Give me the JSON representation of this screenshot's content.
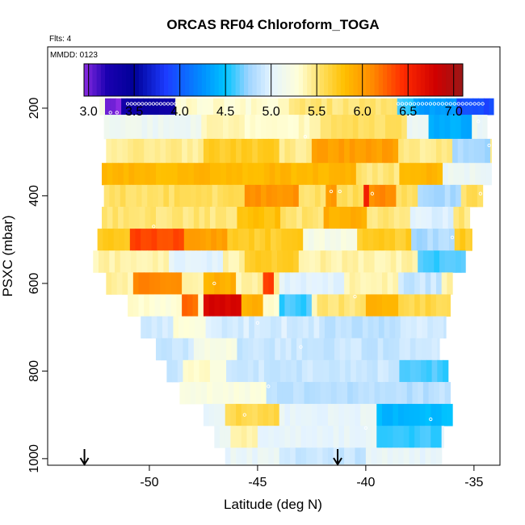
{
  "chart_data": {
    "type": "heatmap",
    "title": "ORCAS RF04 Chloroform_TOGA",
    "xlabel": "Latitude (deg N)",
    "ylabel": "PSXC (mbar)",
    "flights_label": "Flts: 4",
    "date_label": "MMDD: 0123",
    "xlim": [
      -54.7,
      -33.8
    ],
    "ylim": [
      1015,
      60
    ],
    "x_ticks": [
      -50,
      -45,
      -40,
      -35
    ],
    "y_ticks": [
      200,
      400,
      600,
      800,
      1000
    ],
    "colorbar": {
      "range": [
        2.95,
        7.1
      ],
      "ticks": [
        "3.0",
        "3.5",
        "4.0",
        "4.5",
        "5.0",
        "5.5",
        "6.0",
        "6.5",
        "7.0"
      ],
      "stops": [
        {
          "v": 2.95,
          "c": "#8a2be2"
        },
        {
          "v": 3.2,
          "c": "#1a00b0"
        },
        {
          "v": 3.5,
          "c": "#000098"
        },
        {
          "v": 3.85,
          "c": "#1c3cff"
        },
        {
          "v": 4.25,
          "c": "#0090ff"
        },
        {
          "v": 4.5,
          "c": "#00c3ff"
        },
        {
          "v": 4.75,
          "c": "#9ed4ff"
        },
        {
          "v": 5.0,
          "c": "#e4f3ff"
        },
        {
          "v": 5.3,
          "c": "#ffffd8"
        },
        {
          "v": 5.55,
          "c": "#ffdf60"
        },
        {
          "v": 5.8,
          "c": "#ffc000"
        },
        {
          "v": 6.1,
          "c": "#ff8c00"
        },
        {
          "v": 6.45,
          "c": "#ff2a00"
        },
        {
          "v": 6.8,
          "c": "#d00000"
        },
        {
          "v": 7.1,
          "c": "#9a1818"
        }
      ]
    },
    "arrows_lat": [
      -53.0,
      -41.3
    ],
    "rows": [
      {
        "p": 190,
        "lat0": -52.3,
        "lat1": -34.1,
        "base": 5.15,
        "features": [
          {
            "lat0": -52.0,
            "lat1": -51.2,
            "v": 3.0
          },
          {
            "lat0": -51.2,
            "lat1": -48.7,
            "v": 3.35
          },
          {
            "lat0": -48.7,
            "lat1": -43.5,
            "v": 5.3
          },
          {
            "lat0": -43.5,
            "lat1": -38.5,
            "v": 5.5
          },
          {
            "lat0": -38.5,
            "lat1": -37.7,
            "v": 4.6
          },
          {
            "lat0": -37.7,
            "lat1": -35.8,
            "v": 4.3
          },
          {
            "lat0": -35.8,
            "lat1": -34.1,
            "v": 3.9
          }
        ]
      },
      {
        "p": 240,
        "lat0": -52.1,
        "lat1": -34.4,
        "base": 5.1,
        "features": [
          {
            "lat0": -47.5,
            "lat1": -42.0,
            "v": 5.35
          },
          {
            "lat0": -42.0,
            "lat1": -38.0,
            "v": 5.55
          },
          {
            "lat0": -37.0,
            "lat1": -35.0,
            "v": 4.4
          }
        ]
      },
      {
        "p": 300,
        "lat0": -52.0,
        "lat1": -34.2,
        "base": 5.45,
        "features": [
          {
            "lat0": -47.5,
            "lat1": -44.0,
            "v": 5.7
          },
          {
            "lat0": -42.5,
            "lat1": -38.5,
            "v": 6.0
          },
          {
            "lat0": -36.0,
            "lat1": -34.2,
            "v": 4.8
          }
        ]
      },
      {
        "p": 350,
        "lat0": -52.2,
        "lat1": -34.2,
        "base": 5.85,
        "features": [
          {
            "lat0": -40.5,
            "lat1": -38.5,
            "v": 5.5
          },
          {
            "lat0": -36.5,
            "lat1": -34.2,
            "v": 5.1
          }
        ]
      },
      {
        "p": 400,
        "lat0": -52.1,
        "lat1": -34.6,
        "base": 5.55,
        "features": [
          {
            "lat0": -45.5,
            "lat1": -43.0,
            "v": 6.05
          },
          {
            "lat0": -41.8,
            "lat1": -41.3,
            "v": 6.0
          },
          {
            "lat0": -40.2,
            "lat1": -39.8,
            "v": 6.6
          },
          {
            "lat0": -39.8,
            "lat1": -38.5,
            "v": 6.1
          },
          {
            "lat0": -37.5,
            "lat1": -35.5,
            "v": 4.8
          }
        ]
      },
      {
        "p": 450,
        "lat0": -52.2,
        "lat1": -35.2,
        "base": 5.5,
        "features": [
          {
            "lat0": -46.0,
            "lat1": -44.0,
            "v": 5.8
          },
          {
            "lat0": -42.0,
            "lat1": -40.0,
            "v": 5.9
          },
          {
            "lat0": -38.0,
            "lat1": -36.0,
            "v": 5.0
          }
        ]
      },
      {
        "p": 500,
        "lat0": -52.4,
        "lat1": -35.1,
        "base": 5.7,
        "features": [
          {
            "lat0": -51.0,
            "lat1": -48.5,
            "v": 6.35
          },
          {
            "lat0": -48.5,
            "lat1": -46.5,
            "v": 6.0
          },
          {
            "lat0": -43.0,
            "lat1": -40.5,
            "v": 5.2
          },
          {
            "lat0": -38.0,
            "lat1": -36.0,
            "v": 4.8
          }
        ]
      },
      {
        "p": 550,
        "lat0": -52.6,
        "lat1": -35.4,
        "base": 5.4,
        "features": [
          {
            "lat0": -49.0,
            "lat1": -46.5,
            "v": 5.0
          },
          {
            "lat0": -45.5,
            "lat1": -43.0,
            "v": 5.7
          },
          {
            "lat0": -37.5,
            "lat1": -35.4,
            "v": 4.6
          }
        ]
      },
      {
        "p": 600,
        "lat0": -52.0,
        "lat1": -36.0,
        "base": 5.4,
        "features": [
          {
            "lat0": -50.8,
            "lat1": -48.5,
            "v": 6.1
          },
          {
            "lat0": -47.5,
            "lat1": -46.0,
            "v": 5.9
          },
          {
            "lat0": -44.8,
            "lat1": -44.2,
            "v": 6.4
          },
          {
            "lat0": -44.0,
            "lat1": -41.0,
            "v": 5.0
          },
          {
            "lat0": -38.5,
            "lat1": -36.5,
            "v": 4.9
          }
        ]
      },
      {
        "p": 650,
        "lat0": -51.0,
        "lat1": -36.1,
        "base": 5.3,
        "features": [
          {
            "lat0": -48.5,
            "lat1": -47.8,
            "v": 6.2
          },
          {
            "lat0": -47.5,
            "lat1": -45.7,
            "v": 6.75
          },
          {
            "lat0": -45.7,
            "lat1": -44.8,
            "v": 5.9
          },
          {
            "lat0": -44.0,
            "lat1": -42.5,
            "v": 4.6
          },
          {
            "lat0": -42.3,
            "lat1": -40.0,
            "v": 5.5
          },
          {
            "lat0": -40.0,
            "lat1": -38.5,
            "v": 5.9
          },
          {
            "lat0": -38.5,
            "lat1": -36.1,
            "v": 5.6
          }
        ]
      },
      {
        "p": 700,
        "lat0": -50.4,
        "lat1": -36.3,
        "base": 4.95,
        "features": [
          {
            "lat0": -49.0,
            "lat1": -47.5,
            "v": 5.3
          },
          {
            "lat0": -42.0,
            "lat1": -38.5,
            "v": 4.85
          }
        ]
      },
      {
        "p": 750,
        "lat0": -49.7,
        "lat1": -36.6,
        "base": 4.9,
        "features": [
          {
            "lat0": -48.0,
            "lat1": -46.0,
            "v": 5.2
          }
        ]
      },
      {
        "p": 800,
        "lat0": -49.2,
        "lat1": -36.2,
        "base": 4.9,
        "features": [
          {
            "lat0": -48.5,
            "lat1": -46.5,
            "v": 5.3
          },
          {
            "lat0": -38.5,
            "lat1": -36.2,
            "v": 4.6
          }
        ]
      },
      {
        "p": 850,
        "lat0": -48.6,
        "lat1": -36.1,
        "base": 4.85,
        "features": [
          {
            "lat0": -48.6,
            "lat1": -44.5,
            "v": 5.25
          }
        ]
      },
      {
        "p": 900,
        "lat0": -47.5,
        "lat1": -36.0,
        "base": 5.05,
        "features": [
          {
            "lat0": -46.5,
            "lat1": -44.0,
            "v": 5.6
          },
          {
            "lat0": -39.5,
            "lat1": -36.0,
            "v": 4.45
          }
        ]
      },
      {
        "p": 950,
        "lat0": -47.0,
        "lat1": -36.4,
        "base": 5.05,
        "features": [
          {
            "lat0": -46.2,
            "lat1": -45.0,
            "v": 5.4
          },
          {
            "lat0": -39.5,
            "lat1": -36.4,
            "v": 4.6
          }
        ]
      },
      {
        "p": 1000,
        "lat0": -46.5,
        "lat1": -36.5,
        "base": 5.05,
        "features": [
          {
            "lat0": -44.0,
            "lat1": -40.0,
            "v": 4.9
          }
        ]
      }
    ],
    "markers": [
      {
        "p": 190,
        "lat0": -51.0,
        "lat1": -48.8,
        "n": 14
      },
      {
        "p": 190,
        "lat0": -38.5,
        "lat1": -34.6,
        "n": 22
      },
      {
        "p": 210,
        "lat0": -51.8,
        "lat1": -51.5,
        "n": 2
      },
      {
        "p": 230,
        "lat0": -34.8,
        "lat1": -34.6,
        "n": 1
      },
      {
        "p": 265,
        "lat0": -42.8,
        "lat1": -42.8,
        "n": 1
      },
      {
        "p": 285,
        "lat0": -34.3,
        "lat1": -34.3,
        "n": 1
      },
      {
        "p": 390,
        "lat0": -41.6,
        "lat1": -41.2,
        "n": 2
      },
      {
        "p": 395,
        "lat0": -39.7,
        "lat1": -39.6,
        "n": 1
      },
      {
        "p": 395,
        "lat0": -34.7,
        "lat1": -34.6,
        "n": 1
      },
      {
        "p": 470,
        "lat0": -49.8,
        "lat1": -49.8,
        "n": 1
      },
      {
        "p": 495,
        "lat0": -36.0,
        "lat1": -36.0,
        "n": 1
      },
      {
        "p": 600,
        "lat0": -47.0,
        "lat1": -47.0,
        "n": 1
      },
      {
        "p": 630,
        "lat0": -40.5,
        "lat1": -40.5,
        "n": 1
      },
      {
        "p": 690,
        "lat0": -45.0,
        "lat1": -45.0,
        "n": 1
      },
      {
        "p": 745,
        "lat0": -43.0,
        "lat1": -43.0,
        "n": 1
      },
      {
        "p": 835,
        "lat0": -44.5,
        "lat1": -44.5,
        "n": 1
      },
      {
        "p": 900,
        "lat0": -45.6,
        "lat1": -45.6,
        "n": 1
      },
      {
        "p": 910,
        "lat0": -37.0,
        "lat1": -37.0,
        "n": 1
      },
      {
        "p": 930,
        "lat0": -40.0,
        "lat1": -40.0,
        "n": 1
      },
      {
        "p": 985,
        "lat0": -36.3,
        "lat1": -36.3,
        "n": 1
      }
    ]
  }
}
